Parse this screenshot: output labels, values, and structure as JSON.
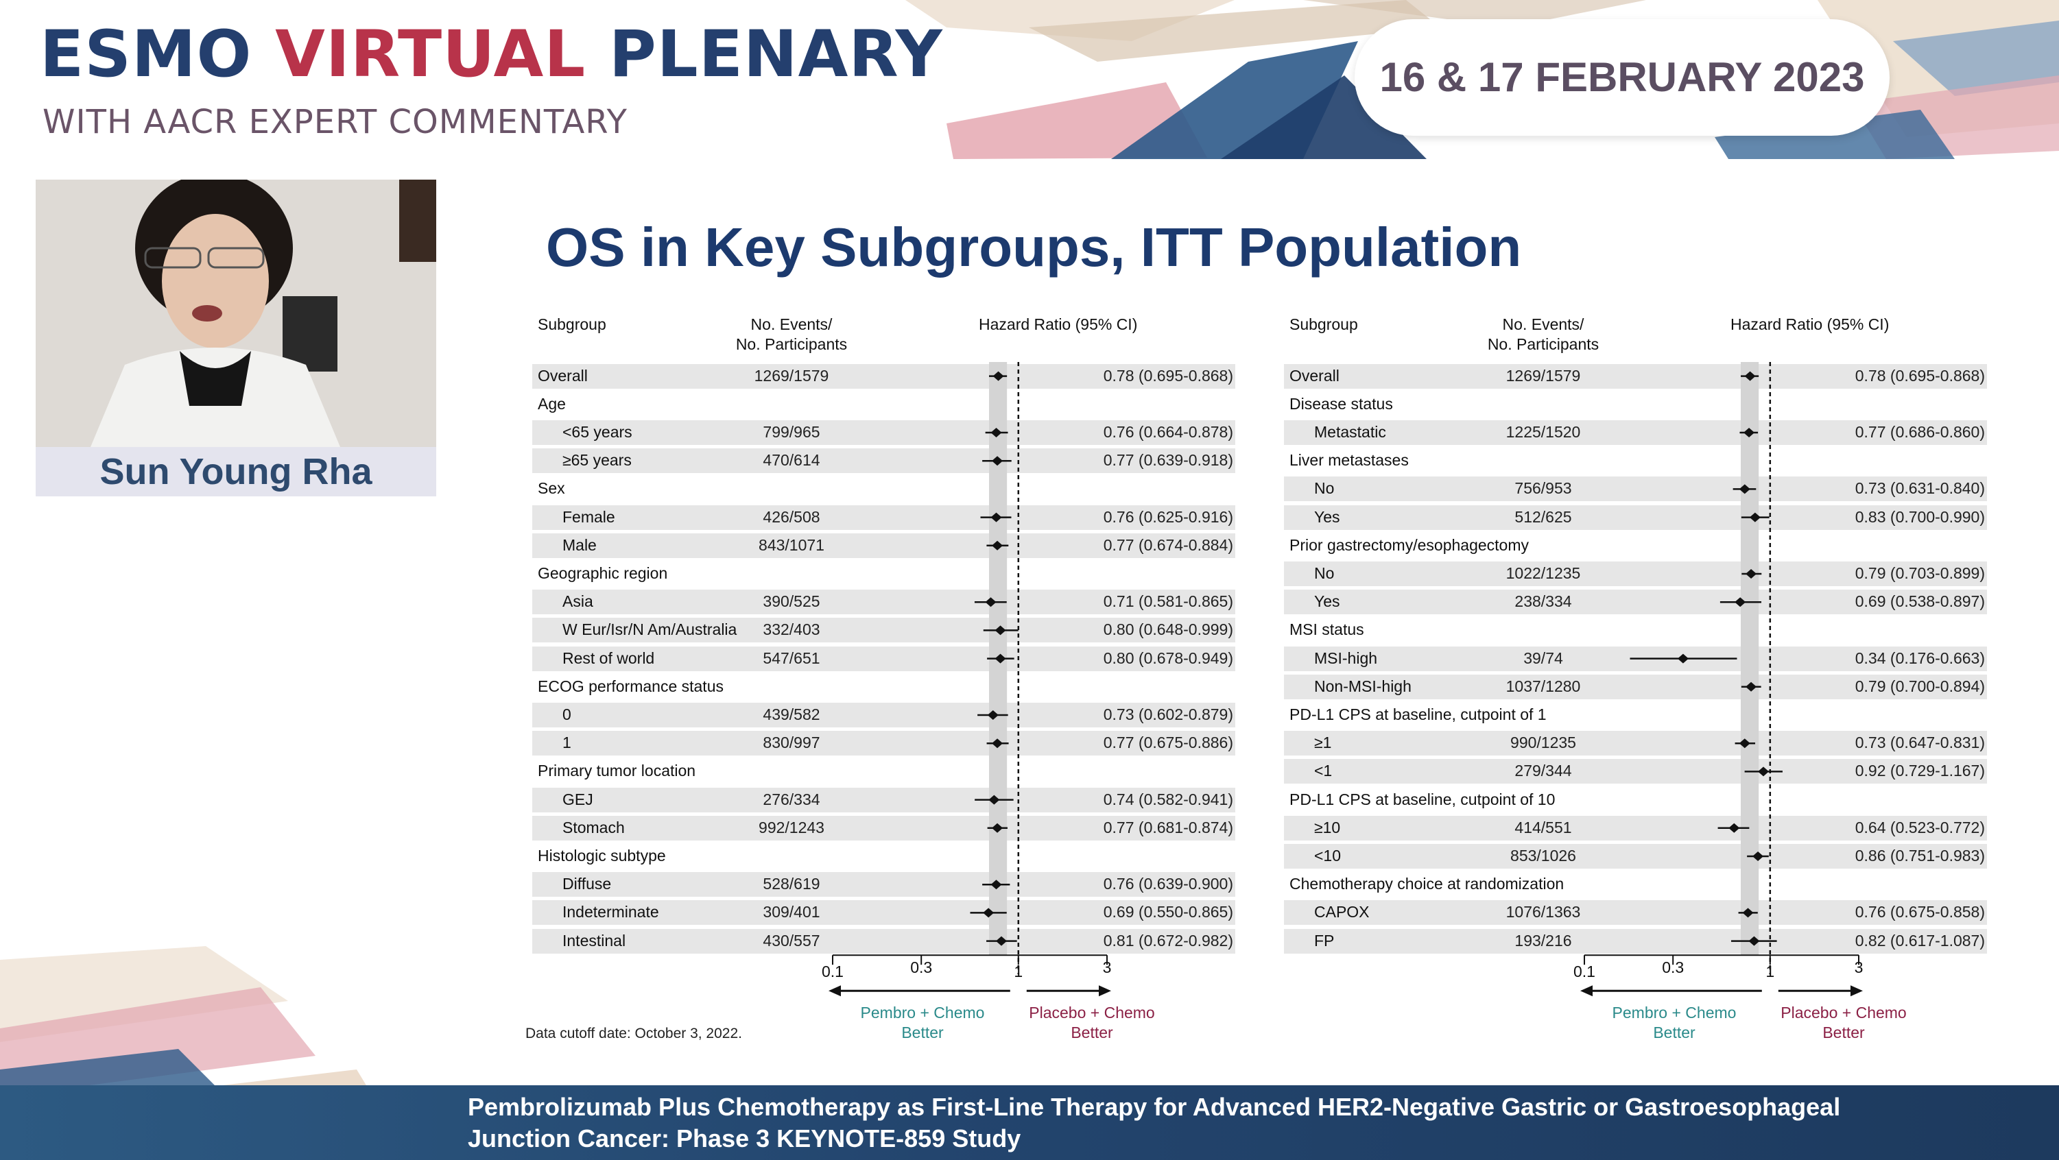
{
  "header": {
    "title_part1": "ESMO ",
    "title_part2": "VIRTUAL",
    "title_part3": " PLENARY",
    "subtitle": "WITH AACR EXPERT COMMENTARY",
    "date": "16 & 17 FEBRUARY 2023"
  },
  "speaker": {
    "name": "Sun Young Rha"
  },
  "slide": {
    "title": "OS in Key Subgroups, ITT Population",
    "data_cutoff": "Data cutoff date: October 3, 2022."
  },
  "footer": {
    "line1": "Pembrolizumab Plus Chemotherapy as First-Line Therapy for Advanced HER2-Negative Gastric or Gastroesophageal",
    "line2": "Junction Cancer: Phase 3 KEYNOTE-859 Study"
  },
  "colors": {
    "navy": "#1c3a6e",
    "red": "#b8334a",
    "teal": "#2a8a8a",
    "maroon": "#8b2045",
    "stripe": "#e6e6e6"
  },
  "chart_data": [
    {
      "type": "forest",
      "columns": {
        "subgroup": "Subgroup",
        "events_line1": "No. Events/",
        "events_line2": "No. Participants",
        "hr": "Hazard Ratio (95% CI)"
      },
      "x_axis": {
        "scale": "log",
        "ticks": [
          "0.1",
          "0.3",
          "1",
          "3"
        ],
        "xlim": [
          0.1,
          3
        ],
        "reference_line": 1,
        "overall_hr": 0.78
      },
      "left_label_line1": "Pembro + Chemo",
      "left_label_line2": "Better",
      "right_label_line1": "Placebo + Chemo",
      "right_label_line2": "Better",
      "rows": [
        {
          "label": "Overall",
          "header": false,
          "indent": false,
          "events": "1269/1579",
          "hr": 0.78,
          "lo": 0.695,
          "hi": 0.868,
          "ci_text": "0.78 (0.695-0.868)"
        },
        {
          "label": "Age",
          "header": true
        },
        {
          "label": "<65 years",
          "indent": true,
          "events": "799/965",
          "hr": 0.76,
          "lo": 0.664,
          "hi": 0.878,
          "ci_text": "0.76 (0.664-0.878)"
        },
        {
          "label": "≥65 years",
          "indent": true,
          "events": "470/614",
          "hr": 0.77,
          "lo": 0.639,
          "hi": 0.918,
          "ci_text": "0.77 (0.639-0.918)"
        },
        {
          "label": "Sex",
          "header": true
        },
        {
          "label": "Female",
          "indent": true,
          "events": "426/508",
          "hr": 0.76,
          "lo": 0.625,
          "hi": 0.916,
          "ci_text": "0.76 (0.625-0.916)"
        },
        {
          "label": "Male",
          "indent": true,
          "events": "843/1071",
          "hr": 0.77,
          "lo": 0.674,
          "hi": 0.884,
          "ci_text": "0.77 (0.674-0.884)"
        },
        {
          "label": "Geographic region",
          "header": true
        },
        {
          "label": "Asia",
          "indent": true,
          "events": "390/525",
          "hr": 0.71,
          "lo": 0.581,
          "hi": 0.865,
          "ci_text": "0.71 (0.581-0.865)"
        },
        {
          "label": "W Eur/Isr/N Am/Australia",
          "indent": true,
          "events": "332/403",
          "hr": 0.8,
          "lo": 0.648,
          "hi": 0.999,
          "ci_text": "0.80 (0.648-0.999)"
        },
        {
          "label": "Rest of world",
          "indent": true,
          "events": "547/651",
          "hr": 0.8,
          "lo": 0.678,
          "hi": 0.949,
          "ci_text": "0.80 (0.678-0.949)"
        },
        {
          "label": "ECOG performance status",
          "header": true
        },
        {
          "label": "0",
          "indent": true,
          "events": "439/582",
          "hr": 0.73,
          "lo": 0.602,
          "hi": 0.879,
          "ci_text": "0.73 (0.602-0.879)"
        },
        {
          "label": "1",
          "indent": true,
          "events": "830/997",
          "hr": 0.77,
          "lo": 0.675,
          "hi": 0.886,
          "ci_text": "0.77 (0.675-0.886)"
        },
        {
          "label": "Primary tumor location",
          "header": true
        },
        {
          "label": "GEJ",
          "indent": true,
          "events": "276/334",
          "hr": 0.74,
          "lo": 0.582,
          "hi": 0.941,
          "ci_text": "0.74 (0.582-0.941)"
        },
        {
          "label": "Stomach",
          "indent": true,
          "events": "992/1243",
          "hr": 0.77,
          "lo": 0.681,
          "hi": 0.874,
          "ci_text": "0.77 (0.681-0.874)"
        },
        {
          "label": "Histologic subtype",
          "header": true
        },
        {
          "label": "Diffuse",
          "indent": true,
          "events": "528/619",
          "hr": 0.76,
          "lo": 0.639,
          "hi": 0.9,
          "ci_text": "0.76 (0.639-0.900)"
        },
        {
          "label": "Indeterminate",
          "indent": true,
          "events": "309/401",
          "hr": 0.69,
          "lo": 0.55,
          "hi": 0.865,
          "ci_text": "0.69 (0.550-0.865)"
        },
        {
          "label": "Intestinal",
          "indent": true,
          "events": "430/557",
          "hr": 0.81,
          "lo": 0.672,
          "hi": 0.982,
          "ci_text": "0.81 (0.672-0.982)"
        }
      ]
    },
    {
      "type": "forest",
      "columns": {
        "subgroup": "Subgroup",
        "events_line1": "No. Events/",
        "events_line2": "No. Participants",
        "hr": "Hazard Ratio (95% CI)"
      },
      "x_axis": {
        "scale": "log",
        "ticks": [
          "0.1",
          "0.3",
          "1",
          "3"
        ],
        "xlim": [
          0.1,
          3
        ],
        "reference_line": 1,
        "overall_hr": 0.78
      },
      "left_label_line1": "Pembro + Chemo",
      "left_label_line2": "Better",
      "right_label_line1": "Placebo + Chemo",
      "right_label_line2": "Better",
      "rows": [
        {
          "label": "Overall",
          "events": "1269/1579",
          "hr": 0.78,
          "lo": 0.695,
          "hi": 0.868,
          "ci_text": "0.78 (0.695-0.868)"
        },
        {
          "label": "Disease status",
          "header": true
        },
        {
          "label": "Metastatic",
          "indent": true,
          "events": "1225/1520",
          "hr": 0.77,
          "lo": 0.686,
          "hi": 0.86,
          "ci_text": "0.77 (0.686-0.860)"
        },
        {
          "label": "Liver metastases",
          "header": true
        },
        {
          "label": "No",
          "indent": true,
          "events": "756/953",
          "hr": 0.73,
          "lo": 0.631,
          "hi": 0.84,
          "ci_text": "0.73 (0.631-0.840)"
        },
        {
          "label": "Yes",
          "indent": true,
          "events": "512/625",
          "hr": 0.83,
          "lo": 0.7,
          "hi": 0.99,
          "ci_text": "0.83 (0.700-0.990)"
        },
        {
          "label": "Prior gastrectomy/esophagectomy",
          "header": true
        },
        {
          "label": "No",
          "indent": true,
          "events": "1022/1235",
          "hr": 0.79,
          "lo": 0.703,
          "hi": 0.899,
          "ci_text": "0.79 (0.703-0.899)"
        },
        {
          "label": "Yes",
          "indent": true,
          "events": "238/334",
          "hr": 0.69,
          "lo": 0.538,
          "hi": 0.897,
          "ci_text": "0.69 (0.538-0.897)"
        },
        {
          "label": "MSI status",
          "header": true
        },
        {
          "label": "MSI-high",
          "indent": true,
          "events": "39/74",
          "hr": 0.34,
          "lo": 0.176,
          "hi": 0.663,
          "ci_text": "0.34 (0.176-0.663)"
        },
        {
          "label": "Non-MSI-high",
          "indent": true,
          "events": "1037/1280",
          "hr": 0.79,
          "lo": 0.7,
          "hi": 0.894,
          "ci_text": "0.79 (0.700-0.894)"
        },
        {
          "label": "PD-L1 CPS at baseline, cutpoint of 1",
          "header": true
        },
        {
          "label": "≥1",
          "indent": true,
          "events": "990/1235",
          "hr": 0.73,
          "lo": 0.647,
          "hi": 0.831,
          "ci_text": "0.73 (0.647-0.831)"
        },
        {
          "label": "<1",
          "indent": true,
          "events": "279/344",
          "hr": 0.92,
          "lo": 0.729,
          "hi": 1.167,
          "ci_text": "0.92 (0.729-1.167)"
        },
        {
          "label": "PD-L1 CPS at baseline, cutpoint of 10",
          "header": true
        },
        {
          "label": "≥10",
          "indent": true,
          "events": "414/551",
          "hr": 0.64,
          "lo": 0.523,
          "hi": 0.772,
          "ci_text": "0.64 (0.523-0.772)"
        },
        {
          "label": "<10",
          "indent": true,
          "events": "853/1026",
          "hr": 0.86,
          "lo": 0.751,
          "hi": 0.983,
          "ci_text": "0.86 (0.751-0.983)"
        },
        {
          "label": "Chemotherapy choice at randomization",
          "header": true
        },
        {
          "label": "CAPOX",
          "indent": true,
          "events": "1076/1363",
          "hr": 0.76,
          "lo": 0.675,
          "hi": 0.858,
          "ci_text": "0.76 (0.675-0.858)"
        },
        {
          "label": "FP",
          "indent": true,
          "events": "193/216",
          "hr": 0.82,
          "lo": 0.617,
          "hi": 1.087,
          "ci_text": "0.82 (0.617-1.087)"
        }
      ]
    }
  ]
}
